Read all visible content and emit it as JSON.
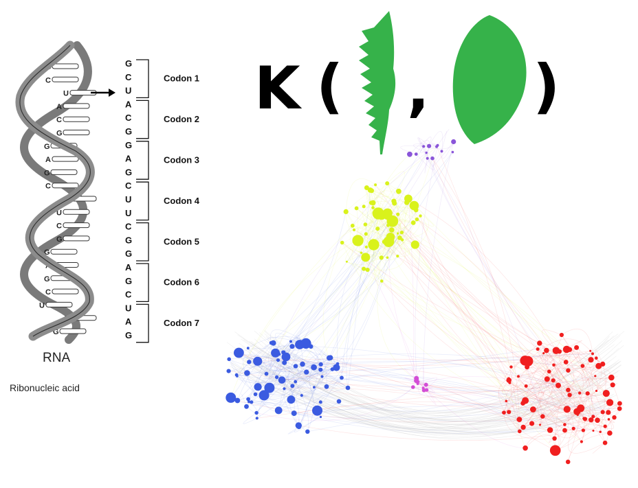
{
  "rna_diagram": {
    "title": "RNA",
    "subtitle": "Ribonucleic acid",
    "helix_bases": [
      "G",
      "C",
      "U",
      "A",
      "C",
      "G",
      "G",
      "A",
      "G",
      "C",
      "U",
      "U",
      "C",
      "G",
      "G",
      "A",
      "G",
      "C",
      "U",
      "A",
      "G"
    ],
    "codon_bases": [
      "G",
      "C",
      "U",
      "A",
      "C",
      "G",
      "G",
      "A",
      "G",
      "C",
      "U",
      "U",
      "C",
      "G",
      "G",
      "A",
      "G",
      "C",
      "U",
      "A",
      "G"
    ],
    "codon_labels": [
      "Codon 1",
      "Codon 2",
      "Codon 3",
      "Codon 4",
      "Codon 5",
      "Codon 6",
      "Codon 7"
    ]
  },
  "kernel_expression": {
    "function_letter": "K",
    "open_paren": "(",
    "comma": ",",
    "close_paren": ")",
    "arg1_icon": "serrated-leaf-icon",
    "arg2_icon": "oval-leaf-icon",
    "leaf_color": "#36b24a"
  },
  "network_graph": {
    "clusters": [
      {
        "color": "#3b5be0"
      },
      {
        "color": "#d9f21c"
      },
      {
        "color": "#f01f1f"
      },
      {
        "color": "#d34dd6"
      }
    ]
  }
}
